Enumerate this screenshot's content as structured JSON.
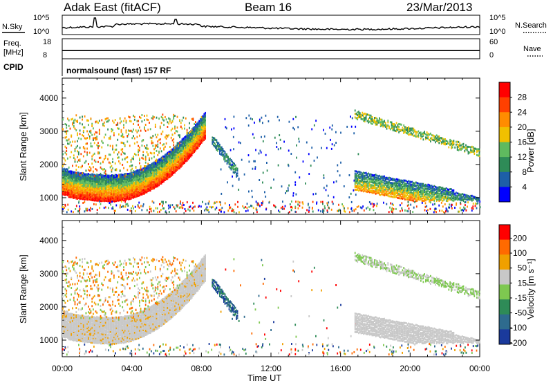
{
  "header": {
    "station": "Adak East (fitACF)",
    "beam": "Beam 16",
    "date": "23/Mar/2013"
  },
  "top_panels": {
    "nsky_label": "N.Sky",
    "nsearch_label": "N.Search",
    "noise_ticks_left": [
      "10^5",
      "10^0"
    ],
    "noise_ticks_right": [
      "10^5",
      "10^0"
    ],
    "freq_label": "Freq.",
    "freq_unit": "[MHz]",
    "freq_ticks": [
      "18",
      "8"
    ],
    "nave_label": "Nave",
    "nave_ticks": [
      "60",
      "0"
    ],
    "cpid_label": "CPID",
    "cpid_value": "normalsound (fast) 157 RF"
  },
  "chart_data": [
    {
      "type": "heatmap",
      "name": "power",
      "ylabel": "Slant Range [km]",
      "ylim": [
        500,
        4600
      ],
      "yticks": [
        "1000",
        "2000",
        "3000",
        "4000"
      ],
      "colorbar_label": "Power [dB]",
      "colorbar_ticks": [
        "4",
        "8",
        "12",
        "16",
        "20",
        "24",
        "28"
      ],
      "colors": [
        "#0000ff",
        "#1d5fa8",
        "#2e8b57",
        "#5fba5f",
        "#f0c000",
        "#ff8c00",
        "#ff4000",
        "#ff0000"
      ],
      "cmin": 0,
      "cmax": 32
    },
    {
      "type": "heatmap",
      "name": "velocity",
      "ylabel": "Slant Range [km]",
      "ylim": [
        500,
        4600
      ],
      "yticks": [
        "1000",
        "2000",
        "3000",
        "4000"
      ],
      "colorbar_label": "Velocity [m s⁻¹]",
      "colorbar_ticks": [
        "200",
        "100",
        "50",
        "15",
        "-15",
        "-50",
        "-100",
        "-200"
      ],
      "colors": [
        "#1a3a9c",
        "#2e6b8e",
        "#2e8b57",
        "#7ec850",
        "#c8c8c8",
        "#f0a000",
        "#ff6a00",
        "#ff0000"
      ]
    }
  ],
  "time_axis": {
    "label": "Time UT",
    "ticks": [
      "00:00",
      "04:00",
      "08:00",
      "12:00",
      "16:00",
      "20:00",
      "00:00"
    ]
  }
}
